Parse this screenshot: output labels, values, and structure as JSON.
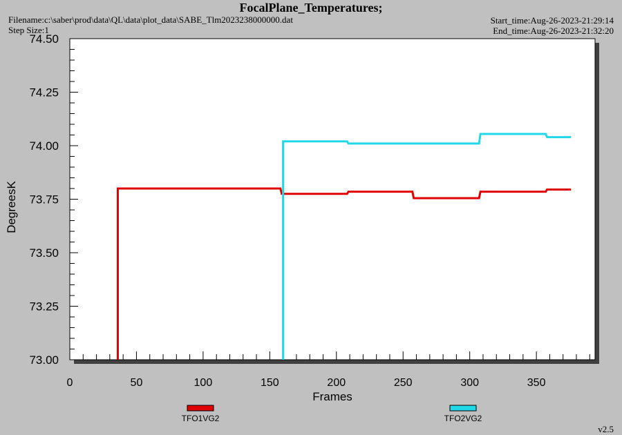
{
  "chart_data": {
    "type": "line",
    "title": "FocalPlane_Temperatures;",
    "filename": "Filename:c:\\saber\\prod\\data\\QL\\data\\plot_data\\SABE_Tlm2023238000000.dat",
    "step_size": "Step Size:1",
    "start_time": "Start_time:Aug-26-2023-21:29:14",
    "end_time": "End_time:Aug-26-2023-21:32:20",
    "version": "v2.5",
    "xlabel": "Frames",
    "ylabel": "DegreesK",
    "xlim": [
      0,
      394
    ],
    "ylim": [
      73.0,
      74.5
    ],
    "xticks": [
      0,
      50,
      100,
      150,
      200,
      250,
      300,
      350
    ],
    "xminorticks": [
      10,
      20,
      30,
      40,
      60,
      70,
      80,
      90,
      110,
      120,
      130,
      140,
      160,
      170,
      180,
      190,
      210,
      220,
      230,
      240,
      260,
      270,
      280,
      290,
      310,
      320,
      330,
      340,
      360,
      370,
      380,
      390
    ],
    "yticks": [
      {
        "value": 73.0,
        "label": "73.00"
      },
      {
        "value": 73.25,
        "label": "73.25"
      },
      {
        "value": 73.5,
        "label": "73.50"
      },
      {
        "value": 73.75,
        "label": "73.75"
      },
      {
        "value": 74.0,
        "label": "74.00"
      },
      {
        "value": 74.25,
        "label": "74.25"
      },
      {
        "value": 74.5,
        "label": "74.50"
      }
    ],
    "yminorticks": [
      73.05,
      73.1,
      73.15,
      73.2,
      73.3,
      73.35,
      73.4,
      73.45,
      73.55,
      73.6,
      73.65,
      73.7,
      73.8,
      73.85,
      73.9,
      73.95,
      74.05,
      74.1,
      74.15,
      74.2,
      74.3,
      74.35,
      74.4,
      74.45
    ],
    "series": [
      {
        "name": "TFO1VG2",
        "color": "#e00000",
        "x": [
          36,
          36,
          158,
          159,
          208,
          209,
          257,
          258,
          307,
          308,
          357,
          358,
          376
        ],
        "values": [
          73.0,
          73.8,
          73.8,
          73.775,
          73.775,
          73.785,
          73.785,
          73.755,
          73.755,
          73.785,
          73.785,
          73.795,
          73.795
        ]
      },
      {
        "name": "TFO2VG2",
        "color": "#20d8e8",
        "x": [
          160,
          160,
          208,
          209,
          307,
          308,
          357,
          358,
          376
        ],
        "values": [
          73.0,
          74.02,
          74.02,
          74.01,
          74.01,
          74.055,
          74.055,
          74.04,
          74.04
        ]
      }
    ]
  }
}
